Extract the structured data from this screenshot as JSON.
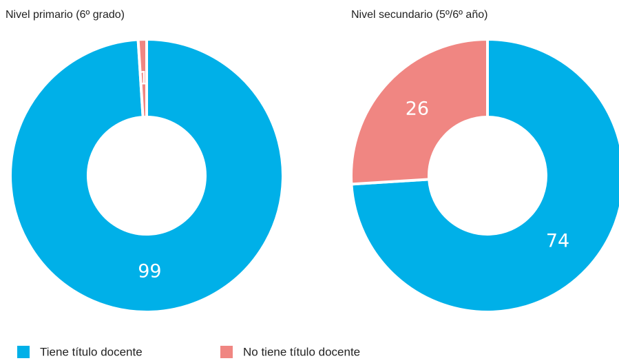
{
  "chart_data": [
    {
      "type": "pie",
      "donut": true,
      "title": "Nivel primario (6º grado)",
      "values": [
        99,
        1
      ],
      "colors": [
        "#00b0e8",
        "#f08682"
      ]
    },
    {
      "type": "pie",
      "donut": true,
      "title": "Nivel secundario (5º/6º año)",
      "values": [
        74,
        26
      ],
      "colors": [
        "#00b0e8",
        "#f08682"
      ]
    }
  ],
  "legend": {
    "items": [
      {
        "name": "Tiene título docente",
        "color": "#00b0e8"
      },
      {
        "name": "No tiene título docente",
        "color": "#f08682"
      }
    ]
  }
}
